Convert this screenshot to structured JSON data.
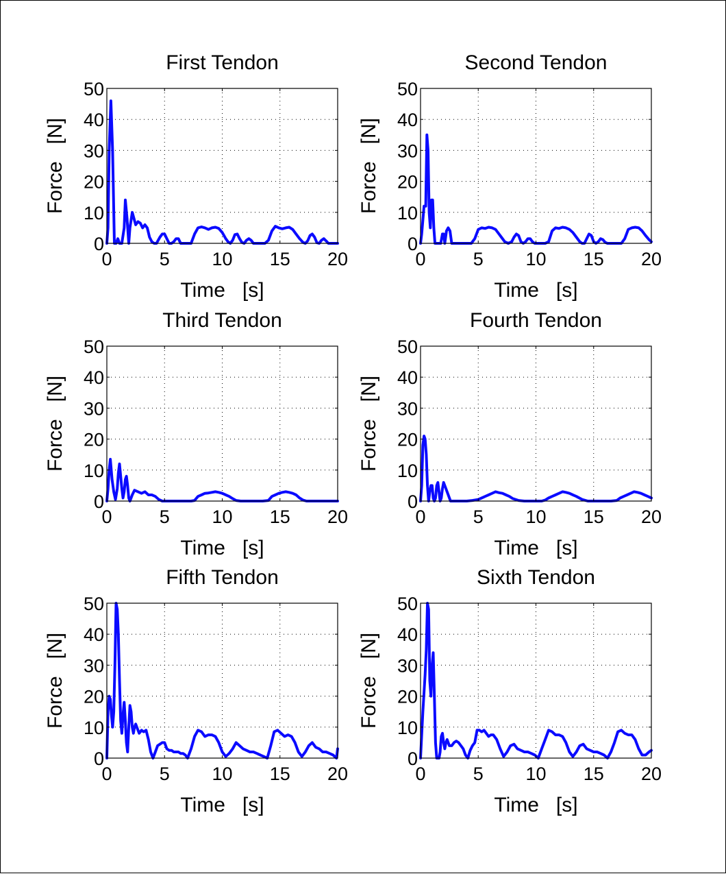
{
  "colors": {
    "line": "#0b0bff",
    "axis": "#000000",
    "grid": "#000000",
    "background": "#ffffff"
  },
  "chart_data": [
    {
      "type": "line",
      "title": "First Tendon",
      "xlabel": "Time   [s]",
      "ylabel": "Force   [N]",
      "xlim": [
        0,
        20
      ],
      "ylim": [
        0,
        50
      ],
      "xticks": [
        0,
        5,
        10,
        15,
        20
      ],
      "yticks": [
        0,
        10,
        20,
        30,
        40,
        50
      ],
      "grid": true,
      "x": [
        0,
        0.1,
        0.2,
        0.35,
        0.5,
        0.65,
        0.8,
        0.95,
        1.1,
        1.3,
        1.5,
        1.6,
        1.75,
        1.9,
        2.0,
        2.2,
        2.35,
        2.5,
        2.7,
        2.9,
        3.1,
        3.3,
        3.5,
        3.7,
        3.9,
        4.1,
        4.3,
        4.6,
        4.8,
        5.0,
        5.2,
        5.4,
        5.6,
        5.8,
        6.0,
        6.2,
        6.4,
        6.6,
        6.8,
        7.0,
        7.3,
        7.6,
        7.9,
        8.2,
        8.5,
        8.8,
        9.1,
        9.4,
        9.7,
        10.0,
        10.3,
        10.5,
        10.7,
        10.9,
        11.1,
        11.3,
        11.5,
        11.7,
        11.9,
        12.1,
        12.3,
        12.5,
        12.7,
        12.9,
        13.1,
        13.4,
        13.7,
        14.0,
        14.3,
        14.6,
        14.9,
        15.2,
        15.5,
        15.8,
        16.1,
        16.4,
        16.7,
        17.0,
        17.2,
        17.4,
        17.6,
        17.8,
        18.0,
        18.2,
        18.4,
        18.6,
        18.8,
        19.0,
        19.2,
        19.5,
        19.8,
        20.0
      ],
      "y": [
        0,
        5,
        30,
        46,
        30,
        0,
        0,
        1.5,
        0,
        0,
        5,
        14,
        8,
        0,
        5,
        10,
        8,
        6,
        7,
        6.5,
        5,
        6,
        5,
        2,
        0.5,
        0,
        0,
        2,
        3,
        3,
        1.5,
        0,
        0,
        0.5,
        1.5,
        1.5,
        0,
        0,
        0,
        0,
        0,
        3,
        5,
        5.3,
        5,
        4.5,
        5,
        5.2,
        4.8,
        3.5,
        1.5,
        0.5,
        0,
        1,
        2.8,
        3,
        1.5,
        0.3,
        0,
        1,
        1.5,
        1,
        0,
        0,
        0,
        0,
        0,
        1,
        4,
        5.5,
        5,
        4.7,
        5,
        5.2,
        4.5,
        3,
        1.5,
        0.3,
        0,
        0.8,
        2.5,
        3,
        2,
        0.2,
        0,
        1,
        1.5,
        0.8,
        0,
        0,
        0,
        0
      ]
    },
    {
      "type": "line",
      "title": "Second Tendon",
      "xlabel": "Time   [s]",
      "ylabel": "Force   [N]",
      "xlim": [
        0,
        20
      ],
      "ylim": [
        0,
        50
      ],
      "xticks": [
        0,
        5,
        10,
        15,
        20
      ],
      "yticks": [
        0,
        10,
        20,
        30,
        40,
        50
      ],
      "grid": true,
      "x": [
        0,
        0.1,
        0.3,
        0.45,
        0.55,
        0.65,
        0.75,
        0.85,
        0.95,
        1.05,
        1.15,
        1.25,
        1.35,
        1.45,
        1.6,
        1.75,
        1.9,
        2.0,
        2.1,
        2.25,
        2.4,
        2.55,
        2.7,
        2.9,
        3.2,
        3.5,
        3.8,
        4.1,
        4.4,
        4.7,
        5.0,
        5.3,
        5.6,
        5.9,
        6.2,
        6.5,
        6.8,
        7.0,
        7.3,
        7.6,
        7.9,
        8.1,
        8.3,
        8.5,
        8.7,
        8.9,
        9.1,
        9.3,
        9.5,
        9.7,
        9.9,
        10.2,
        10.5,
        10.8,
        11.1,
        11.4,
        11.7,
        12.0,
        12.3,
        12.6,
        12.9,
        13.2,
        13.5,
        13.8,
        14.0,
        14.2,
        14.4,
        14.6,
        14.8,
        15.0,
        15.2,
        15.4,
        15.6,
        15.8,
        16.0,
        16.2,
        16.5,
        16.8,
        17.1,
        17.4,
        17.7,
        18.0,
        18.3,
        18.6,
        18.9,
        19.2,
        19.5,
        19.8,
        20.0
      ],
      "y": [
        0,
        3,
        12,
        12,
        35,
        30,
        10,
        5,
        14,
        14,
        5,
        0,
        0,
        0,
        0,
        0,
        3,
        3,
        0,
        4,
        5,
        4,
        0,
        0,
        0,
        0,
        0,
        0,
        0,
        1.5,
        4.5,
        5,
        4.8,
        5.2,
        5,
        4.5,
        3,
        2,
        0.5,
        0,
        0.5,
        2,
        3,
        2.5,
        0.5,
        0,
        0.5,
        1.5,
        1.5,
        0.5,
        0,
        0,
        0,
        0,
        0.5,
        4,
        5,
        4.8,
        5.2,
        5,
        4.5,
        3.5,
        2,
        0.5,
        0,
        0,
        1.5,
        3,
        2.5,
        0.5,
        0,
        0.5,
        1.5,
        1.2,
        0.3,
        0,
        0,
        0,
        0,
        0,
        1.5,
        4.5,
        5,
        5.2,
        5,
        4,
        2.5,
        1.2,
        0.5
      ]
    },
    {
      "type": "line",
      "title": "Third Tendon",
      "xlabel": "Time   [s]",
      "ylabel": "Force   [N]",
      "xlim": [
        0,
        20
      ],
      "ylim": [
        0,
        50
      ],
      "xticks": [
        0,
        5,
        10,
        15,
        20
      ],
      "yticks": [
        0,
        10,
        20,
        30,
        40,
        50
      ],
      "grid": true,
      "x": [
        0,
        0.1,
        0.2,
        0.3,
        0.45,
        0.6,
        0.75,
        0.9,
        1.0,
        1.1,
        1.2,
        1.3,
        1.4,
        1.5,
        1.6,
        1.7,
        1.8,
        1.9,
        2.0,
        2.2,
        2.4,
        2.7,
        3.0,
        3.3,
        3.6,
        3.9,
        4.2,
        4.5,
        4.8,
        5.0,
        5.5,
        6.0,
        6.5,
        7.0,
        7.3,
        7.6,
        7.9,
        8.2,
        8.5,
        8.8,
        9.1,
        9.4,
        9.7,
        10.0,
        10.3,
        10.6,
        10.9,
        11.2,
        11.6,
        12.0,
        12.5,
        13.0,
        13.5,
        14.0,
        14.3,
        14.6,
        14.9,
        15.2,
        15.5,
        15.8,
        16.1,
        16.4,
        16.7,
        17.0,
        17.3,
        17.6,
        18.0,
        18.5,
        19.0,
        19.5,
        20.0
      ],
      "y": [
        0,
        4,
        10,
        13.5,
        7,
        3,
        0.5,
        4,
        9,
        12,
        8,
        4,
        1,
        3,
        7,
        8,
        5,
        1,
        0,
        2,
        3.5,
        3,
        2.5,
        3,
        2,
        2,
        1.5,
        0.5,
        0,
        0,
        0,
        0,
        0,
        0,
        0,
        0.2,
        1.5,
        2,
        2.5,
        2.6,
        2.8,
        3,
        2.8,
        2.5,
        2,
        1.5,
        0.8,
        0.2,
        0,
        0,
        0,
        0,
        0,
        0.2,
        1.5,
        2,
        2.5,
        2.8,
        3,
        2.8,
        2.5,
        2,
        1,
        0.3,
        0,
        0,
        0,
        0,
        0,
        0,
        0
      ]
    },
    {
      "type": "line",
      "title": "Fourth Tendon",
      "xlabel": "Time   [s]",
      "ylabel": "Force   [N]",
      "xlim": [
        0,
        20
      ],
      "ylim": [
        0,
        50
      ],
      "xticks": [
        0,
        5,
        10,
        15,
        20
      ],
      "yticks": [
        0,
        10,
        20,
        30,
        40,
        50
      ],
      "grid": true,
      "x": [
        0,
        0.1,
        0.2,
        0.3,
        0.4,
        0.5,
        0.6,
        0.7,
        0.8,
        0.9,
        1.0,
        1.1,
        1.2,
        1.3,
        1.4,
        1.5,
        1.6,
        1.7,
        1.8,
        1.9,
        2.0,
        2.2,
        2.6,
        3.0,
        3.5,
        4.0,
        4.5,
        5.0,
        5.3,
        5.6,
        5.9,
        6.2,
        6.5,
        6.8,
        7.1,
        7.4,
        7.7,
        8.0,
        8.5,
        9.0,
        9.5,
        10.0,
        10.5,
        10.8,
        11.1,
        11.4,
        11.7,
        12.0,
        12.3,
        12.6,
        12.9,
        13.2,
        13.5,
        14.0,
        14.5,
        15.0,
        15.5,
        16.0,
        16.5,
        17.0,
        17.3,
        17.6,
        17.9,
        18.2,
        18.5,
        18.8,
        19.1,
        19.4,
        19.7,
        20.0
      ],
      "y": [
        0,
        5,
        18,
        21,
        20,
        15,
        5,
        0,
        3,
        5,
        5,
        1,
        0,
        1,
        5,
        6,
        3,
        0,
        1,
        4,
        6,
        4,
        0,
        0,
        0,
        0,
        0.2,
        0.5,
        1,
        1.5,
        2,
        2.5,
        3,
        2.7,
        2.5,
        2,
        1.5,
        0.8,
        0.2,
        0,
        0,
        0,
        0,
        0.3,
        1,
        1.5,
        2,
        2.5,
        3,
        2.8,
        2.5,
        2,
        1.5,
        0.5,
        0,
        0,
        0,
        0,
        0,
        0.2,
        1,
        1.5,
        2,
        2.5,
        3,
        2.8,
        2.5,
        2,
        1.5,
        1
      ]
    },
    {
      "type": "line",
      "title": "Fifth Tendon",
      "xlabel": "Time   [s]",
      "ylabel": "Force   [N]",
      "xlim": [
        0,
        20
      ],
      "ylim": [
        0,
        50
      ],
      "xticks": [
        0,
        5,
        10,
        15,
        20
      ],
      "yticks": [
        0,
        10,
        20,
        30,
        40,
        50
      ],
      "grid": true,
      "x": [
        0,
        0.1,
        0.2,
        0.3,
        0.4,
        0.5,
        0.6,
        0.7,
        0.8,
        0.9,
        1.0,
        1.1,
        1.2,
        1.3,
        1.4,
        1.5,
        1.6,
        1.7,
        1.8,
        1.9,
        2.0,
        2.1,
        2.2,
        2.3,
        2.4,
        2.5,
        2.6,
        2.8,
        3.0,
        3.2,
        3.4,
        3.6,
        3.8,
        4.0,
        4.2,
        4.4,
        4.6,
        4.8,
        5.0,
        5.2,
        5.4,
        5.6,
        5.8,
        6.0,
        6.2,
        6.4,
        6.6,
        6.8,
        7.0,
        7.3,
        7.6,
        7.9,
        8.2,
        8.5,
        8.8,
        9.1,
        9.4,
        9.7,
        10.0,
        10.3,
        10.6,
        10.9,
        11.2,
        11.5,
        11.8,
        12.1,
        12.4,
        12.7,
        13.0,
        13.3,
        13.6,
        13.9,
        14.2,
        14.5,
        14.8,
        15.1,
        15.4,
        15.7,
        16.0,
        16.3,
        16.6,
        16.9,
        17.2,
        17.5,
        17.8,
        18.1,
        18.4,
        18.7,
        19.0,
        19.3,
        19.6,
        19.9,
        20.0
      ],
      "y": [
        0,
        15,
        20,
        19,
        14,
        10,
        15,
        30,
        50,
        48,
        40,
        25,
        12,
        8,
        14,
        18,
        12,
        5,
        2,
        10,
        17,
        15,
        10,
        8,
        10,
        11,
        10,
        8,
        9,
        8.5,
        9,
        6,
        2,
        0,
        2,
        4,
        4.5,
        5,
        5,
        3,
        2.5,
        2.5,
        2,
        2,
        2,
        1.5,
        1.5,
        1,
        0,
        3,
        7,
        9,
        8.5,
        7,
        7.5,
        7.5,
        7,
        5,
        2,
        0.5,
        1.5,
        3,
        5,
        4,
        3,
        2.5,
        2,
        2,
        1.5,
        1,
        0.5,
        0,
        4,
        8.5,
        9,
        8,
        7,
        7.5,
        7,
        5,
        2,
        0.5,
        2,
        4,
        5,
        3.5,
        3,
        2,
        2,
        1.5,
        1,
        0,
        3
      ]
    },
    {
      "type": "line",
      "title": "Sixth Tendon",
      "xlabel": "Time   [s]",
      "ylabel": "Force   [N]",
      "xlim": [
        0,
        20
      ],
      "ylim": [
        0,
        50
      ],
      "xticks": [
        0,
        5,
        10,
        15,
        20
      ],
      "yticks": [
        0,
        10,
        20,
        30,
        40,
        50
      ],
      "grid": true,
      "x": [
        0,
        0.2,
        0.4,
        0.5,
        0.6,
        0.7,
        0.8,
        0.9,
        1.0,
        1.1,
        1.2,
        1.3,
        1.4,
        1.5,
        1.6,
        1.7,
        1.8,
        1.9,
        2.0,
        2.1,
        2.2,
        2.3,
        2.5,
        2.7,
        2.9,
        3.1,
        3.3,
        3.5,
        3.7,
        3.9,
        4.1,
        4.3,
        4.5,
        4.7,
        4.9,
        5.1,
        5.3,
        5.5,
        5.7,
        5.9,
        6.1,
        6.3,
        6.6,
        6.9,
        7.2,
        7.5,
        7.8,
        8.1,
        8.4,
        8.7,
        9.0,
        9.3,
        9.6,
        9.9,
        10.2,
        10.5,
        10.8,
        11.1,
        11.4,
        11.7,
        12.0,
        12.3,
        12.6,
        12.9,
        13.2,
        13.5,
        13.8,
        14.1,
        14.4,
        14.7,
        15.0,
        15.3,
        15.6,
        15.9,
        16.2,
        16.5,
        16.8,
        17.1,
        17.4,
        17.7,
        18.0,
        18.3,
        18.6,
        18.9,
        19.2,
        19.5,
        19.8,
        20.0
      ],
      "y": [
        0,
        15,
        27,
        35,
        52,
        48,
        25,
        20,
        30,
        34,
        20,
        5,
        0,
        0,
        0,
        2,
        7,
        8,
        5,
        3,
        5,
        6,
        4,
        4,
        5,
        5.5,
        5,
        4,
        3,
        1,
        0,
        2.5,
        4,
        5,
        9,
        9,
        8.5,
        9,
        8,
        7,
        7.5,
        7.5,
        6,
        3,
        0.5,
        2,
        4,
        4.5,
        3,
        2.5,
        2,
        2,
        1.5,
        1,
        0,
        3,
        6,
        9,
        8.5,
        7.5,
        7.5,
        7,
        5,
        2,
        0.5,
        2,
        4,
        4.5,
        3,
        2.5,
        2,
        2,
        1.5,
        1,
        0,
        2,
        5,
        8.5,
        9,
        8,
        7.5,
        7.5,
        6,
        3,
        1,
        1,
        2,
        2.5
      ]
    }
  ]
}
